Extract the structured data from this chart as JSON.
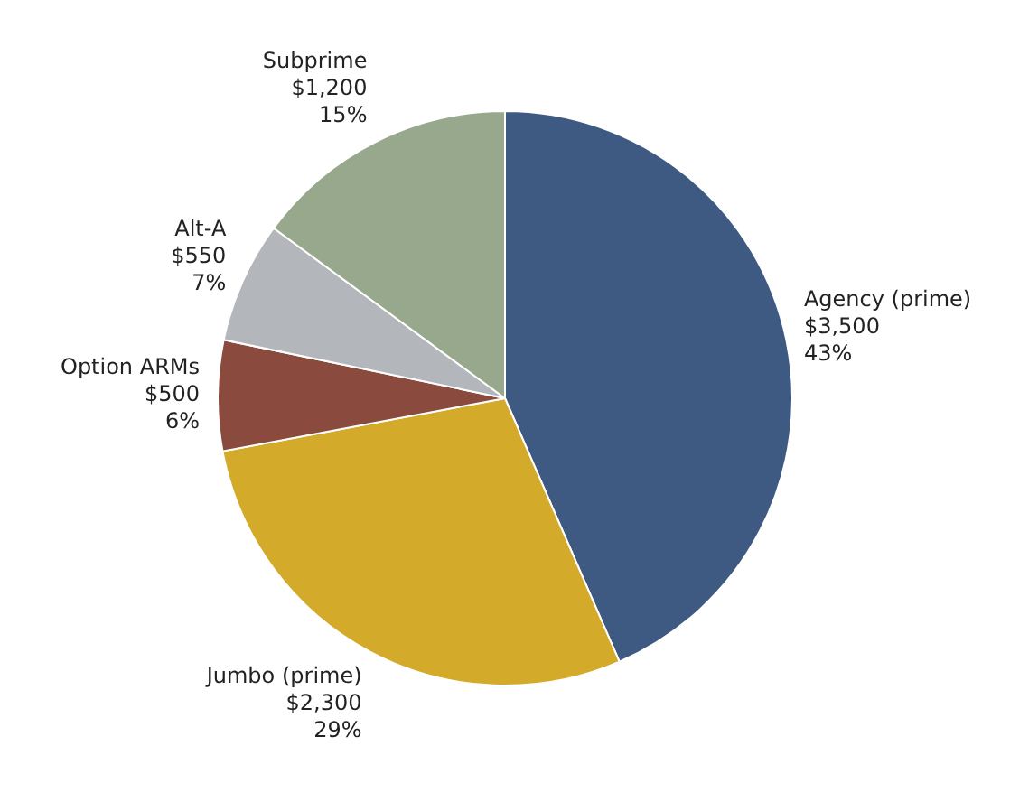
{
  "chart_data": {
    "type": "pie",
    "categories": [
      "Agency (prime)",
      "Jumbo (prime)",
      "Option ARMs",
      "Alt-A",
      "Subprime"
    ],
    "values": [
      3500,
      2300,
      500,
      550,
      1200
    ],
    "value_labels": [
      "$3,500\n43%",
      "$2,300\n29%",
      "$500\n6%",
      "$550\n7%",
      "$1,200\n15%"
    ],
    "colors": [
      "#3f5a82",
      "#d4aa2b",
      "#8b4a3e",
      "#b3b6ba",
      "#98a88c"
    ],
    "legend": false
  }
}
